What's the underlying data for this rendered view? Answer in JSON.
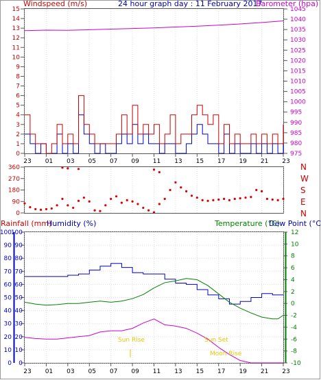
{
  "header": {
    "title": "24 hour graph day : 11 February 2017",
    "left_label": "Windspeed (m/s)",
    "right_label": "Barometer (hpa)"
  },
  "wind_dir_labels": [
    "N",
    "W",
    "S",
    "E",
    "N"
  ],
  "lower_labels": {
    "rainfall": "Rainfall (mm)",
    "humidity": "Humidity (%)",
    "temperature": "Temperature (°C)",
    "dewpoint": "Dew Point (°C)"
  },
  "annotations": {
    "sun_rise": "Sun Rise",
    "sun_set": "Sun Set",
    "moon_rise": "Moon Rise"
  },
  "colors": {
    "wind_avg": "#0000cc",
    "wind_gust": "#cc0000",
    "barometer": "#cc00cc",
    "direction": "#dd0000",
    "humidity": "#0000cc",
    "temperature": "#008000",
    "dewpoint": "#008000",
    "sun": "#e6c800",
    "rain_axis": "#0000cc",
    "temp_axis": "#008000"
  },
  "chart_data": [
    {
      "type": "line",
      "title": "24 hour graph day : 11 February 2017",
      "x_ticks": [
        "23",
        "01",
        "03",
        "05",
        "07",
        "09",
        "11",
        "13",
        "15",
        "17",
        "19",
        "21",
        "23"
      ],
      "x_hours": [
        0,
        2,
        4,
        6,
        8,
        10,
        12,
        14,
        16,
        18,
        20,
        22,
        24
      ],
      "left_axis": {
        "label": "Windspeed (m/s)",
        "ylim": [
          0,
          15
        ],
        "ticks": [
          0,
          1,
          2,
          3,
          4,
          5,
          6,
          7,
          8,
          9,
          10,
          11,
          12,
          13,
          14,
          15
        ]
      },
      "right_axis": {
        "label": "Barometer (hpa)",
        "ylim": [
          975,
          1045
        ],
        "ticks": [
          975,
          980,
          985,
          990,
          995,
          1000,
          1005,
          1010,
          1015,
          1020,
          1025,
          1030,
          1035,
          1040,
          1045
        ]
      },
      "series": [
        {
          "name": "Windspeed",
          "axis": "left",
          "x": [
            0,
            0.5,
            1,
            1.5,
            2,
            2.5,
            3,
            3.5,
            4,
            4.5,
            5,
            5.5,
            6,
            6.5,
            7,
            7.5,
            8,
            8.5,
            9,
            9.5,
            10,
            10.5,
            11,
            11.5,
            12,
            12.5,
            13,
            13.5,
            14,
            14.5,
            15,
            15.5,
            16,
            16.5,
            17,
            17.5,
            18,
            18.5,
            19,
            19.5,
            20,
            20.5,
            21,
            21.5,
            22,
            22.5,
            23,
            23.5,
            24
          ],
          "values": [
            2,
            1,
            0,
            1,
            0,
            0,
            2,
            0,
            1,
            0,
            4,
            2,
            1,
            0,
            1,
            0,
            0,
            1,
            2,
            1,
            3,
            1,
            2,
            1,
            1,
            0,
            1,
            1,
            0,
            0,
            1,
            2,
            3,
            2,
            1,
            1,
            0,
            2,
            0,
            1,
            0,
            0,
            1,
            0,
            1,
            0,
            1,
            0,
            2
          ]
        },
        {
          "name": "Gust",
          "axis": "left",
          "x": [
            0,
            0.5,
            1,
            1.5,
            2,
            2.5,
            3,
            3.5,
            4,
            4.5,
            5,
            5.5,
            6,
            6.5,
            7,
            7.5,
            8,
            8.5,
            9,
            9.5,
            10,
            10.5,
            11,
            11.5,
            12,
            12.5,
            13,
            13.5,
            14,
            14.5,
            15,
            15.5,
            16,
            16.5,
            17,
            17.5,
            18,
            18.5,
            19,
            19.5,
            20,
            20.5,
            21,
            21.5,
            22,
            22.5,
            23,
            23.5,
            24
          ],
          "values": [
            4,
            2,
            1,
            1,
            0,
            1,
            3,
            1,
            2,
            1,
            6,
            3,
            2,
            1,
            1,
            1,
            1,
            2,
            4,
            2,
            5,
            2,
            3,
            2,
            3,
            1,
            2,
            4,
            1,
            2,
            2,
            4,
            5,
            4,
            3,
            4,
            1,
            3,
            1,
            2,
            1,
            1,
            2,
            1,
            2,
            1,
            2,
            1,
            3
          ]
        },
        {
          "name": "Barometer",
          "axis": "right",
          "x": [
            0,
            2,
            4,
            6,
            8,
            10,
            12,
            14,
            16,
            18,
            20,
            22,
            24
          ],
          "values": [
            1034.5,
            1034.7,
            1034.6,
            1034.9,
            1035.2,
            1035.5,
            1035.8,
            1036.2,
            1036.6,
            1037.1,
            1037.7,
            1038.4,
            1039.2
          ]
        }
      ]
    },
    {
      "type": "scatter",
      "title": "",
      "x_hours": [
        0,
        0.5,
        1,
        1.5,
        2,
        2.5,
        3,
        3.5,
        4,
        4.5,
        5,
        5.5,
        6,
        6.5,
        7,
        7.5,
        8,
        8.5,
        9,
        9.5,
        10,
        10.5,
        11,
        11.5,
        12,
        12.5,
        13,
        13.5,
        14,
        14.5,
        15,
        15.5,
        16,
        16.5,
        17,
        17.5,
        18,
        18.5,
        19,
        19.5,
        20,
        20.5,
        21,
        21.5,
        22,
        22.5,
        23,
        23.5,
        24
      ],
      "y_axis": {
        "ylim": [
          0,
          360
        ],
        "ticks": [
          0,
          90,
          180,
          270,
          360
        ]
      },
      "series": [
        {
          "name": "Wind Direction",
          "values": [
            75,
            45,
            30,
            25,
            30,
            35,
            60,
            110,
            60,
            40,
            95,
            120,
            90,
            20,
            15,
            60,
            110,
            130,
            80,
            100,
            90,
            70,
            40,
            20,
            5,
            70,
            110,
            180,
            240,
            200,
            170,
            135,
            120,
            100,
            95,
            100,
            105,
            110,
            100,
            110,
            115,
            120,
            125,
            180,
            170,
            110,
            105,
            100,
            110
          ]
        },
        {
          "name": "Wind Direction (wrap)",
          "values": [
            null,
            null,
            null,
            null,
            null,
            null,
            null,
            355,
            350,
            null,
            345,
            null,
            null,
            null,
            null,
            null,
            null,
            null,
            null,
            null,
            null,
            null,
            null,
            null,
            340,
            320,
            null,
            null,
            null,
            null,
            null,
            null,
            null,
            null,
            null,
            null,
            null,
            null,
            null,
            null,
            null,
            null,
            null,
            null,
            null,
            null,
            null,
            null,
            null
          ]
        }
      ]
    },
    {
      "type": "line",
      "title": "",
      "x_ticks": [
        "23",
        "01",
        "03",
        "05",
        "07",
        "09",
        "11",
        "13",
        "15",
        "17",
        "19",
        "21",
        "23"
      ],
      "x_hours": [
        0,
        2,
        4,
        6,
        8,
        10,
        12,
        14,
        16,
        18,
        20,
        22,
        24
      ],
      "left_axis": {
        "label": "Rainfall (mm) / Humidity (%)",
        "ylim": [
          0,
          100
        ],
        "ticks": [
          0,
          10,
          20,
          30,
          40,
          50,
          60,
          70,
          80,
          90,
          100
        ]
      },
      "right_axis": {
        "label": "Temperature (°C) / Dew Point (°C)",
        "ylim": [
          -10,
          12
        ],
        "ticks": [
          -10,
          -8,
          -6,
          -4,
          -2,
          0,
          2,
          4,
          6,
          8,
          10,
          12
        ]
      },
      "series": [
        {
          "name": "Humidity",
          "axis": "left",
          "x": [
            0,
            2,
            4,
            5,
            6,
            7,
            8,
            9,
            10,
            11,
            12,
            13,
            14,
            15,
            16,
            17,
            18,
            19,
            20,
            21,
            22,
            23,
            24
          ],
          "values": [
            66,
            66,
            67,
            68,
            71,
            74,
            76,
            73,
            69,
            68,
            68,
            64,
            61,
            60,
            56,
            52,
            49,
            45,
            47,
            50,
            53,
            52,
            52
          ]
        },
        {
          "name": "Temperature",
          "axis": "right",
          "x": [
            0,
            1,
            2,
            3,
            4,
            5,
            6,
            7,
            8,
            9,
            10,
            11,
            12,
            13,
            14,
            15,
            16,
            17,
            18,
            19,
            20,
            21,
            22,
            23,
            23.5,
            24
          ],
          "values": [
            0.2,
            -0.1,
            -0.3,
            -0.2,
            0,
            0,
            0.2,
            0.4,
            0.2,
            0.4,
            0.8,
            1.5,
            2.6,
            3.5,
            3.8,
            4.2,
            4,
            3,
            1.6,
            0.2,
            -0.8,
            -1.6,
            -2.3,
            -2.6,
            -2.6,
            -2
          ]
        },
        {
          "name": "Dew Point",
          "axis": "right",
          "x": [
            0,
            1,
            2,
            3,
            4,
            5,
            6,
            7,
            8,
            9,
            10,
            11,
            12,
            13,
            14,
            15,
            16,
            17,
            18,
            19,
            20,
            21,
            22,
            23,
            24
          ],
          "values": [
            -5.7,
            -5.9,
            -6,
            -6,
            -5.8,
            -5.6,
            -5.4,
            -4.8,
            -4.6,
            -4.6,
            -4.2,
            -3.3,
            -2.6,
            -3.6,
            -3.8,
            -4.2,
            -5,
            -6,
            -7.4,
            -8.6,
            -9.6,
            -10,
            -10,
            -10,
            -10
          ]
        }
      ]
    }
  ]
}
